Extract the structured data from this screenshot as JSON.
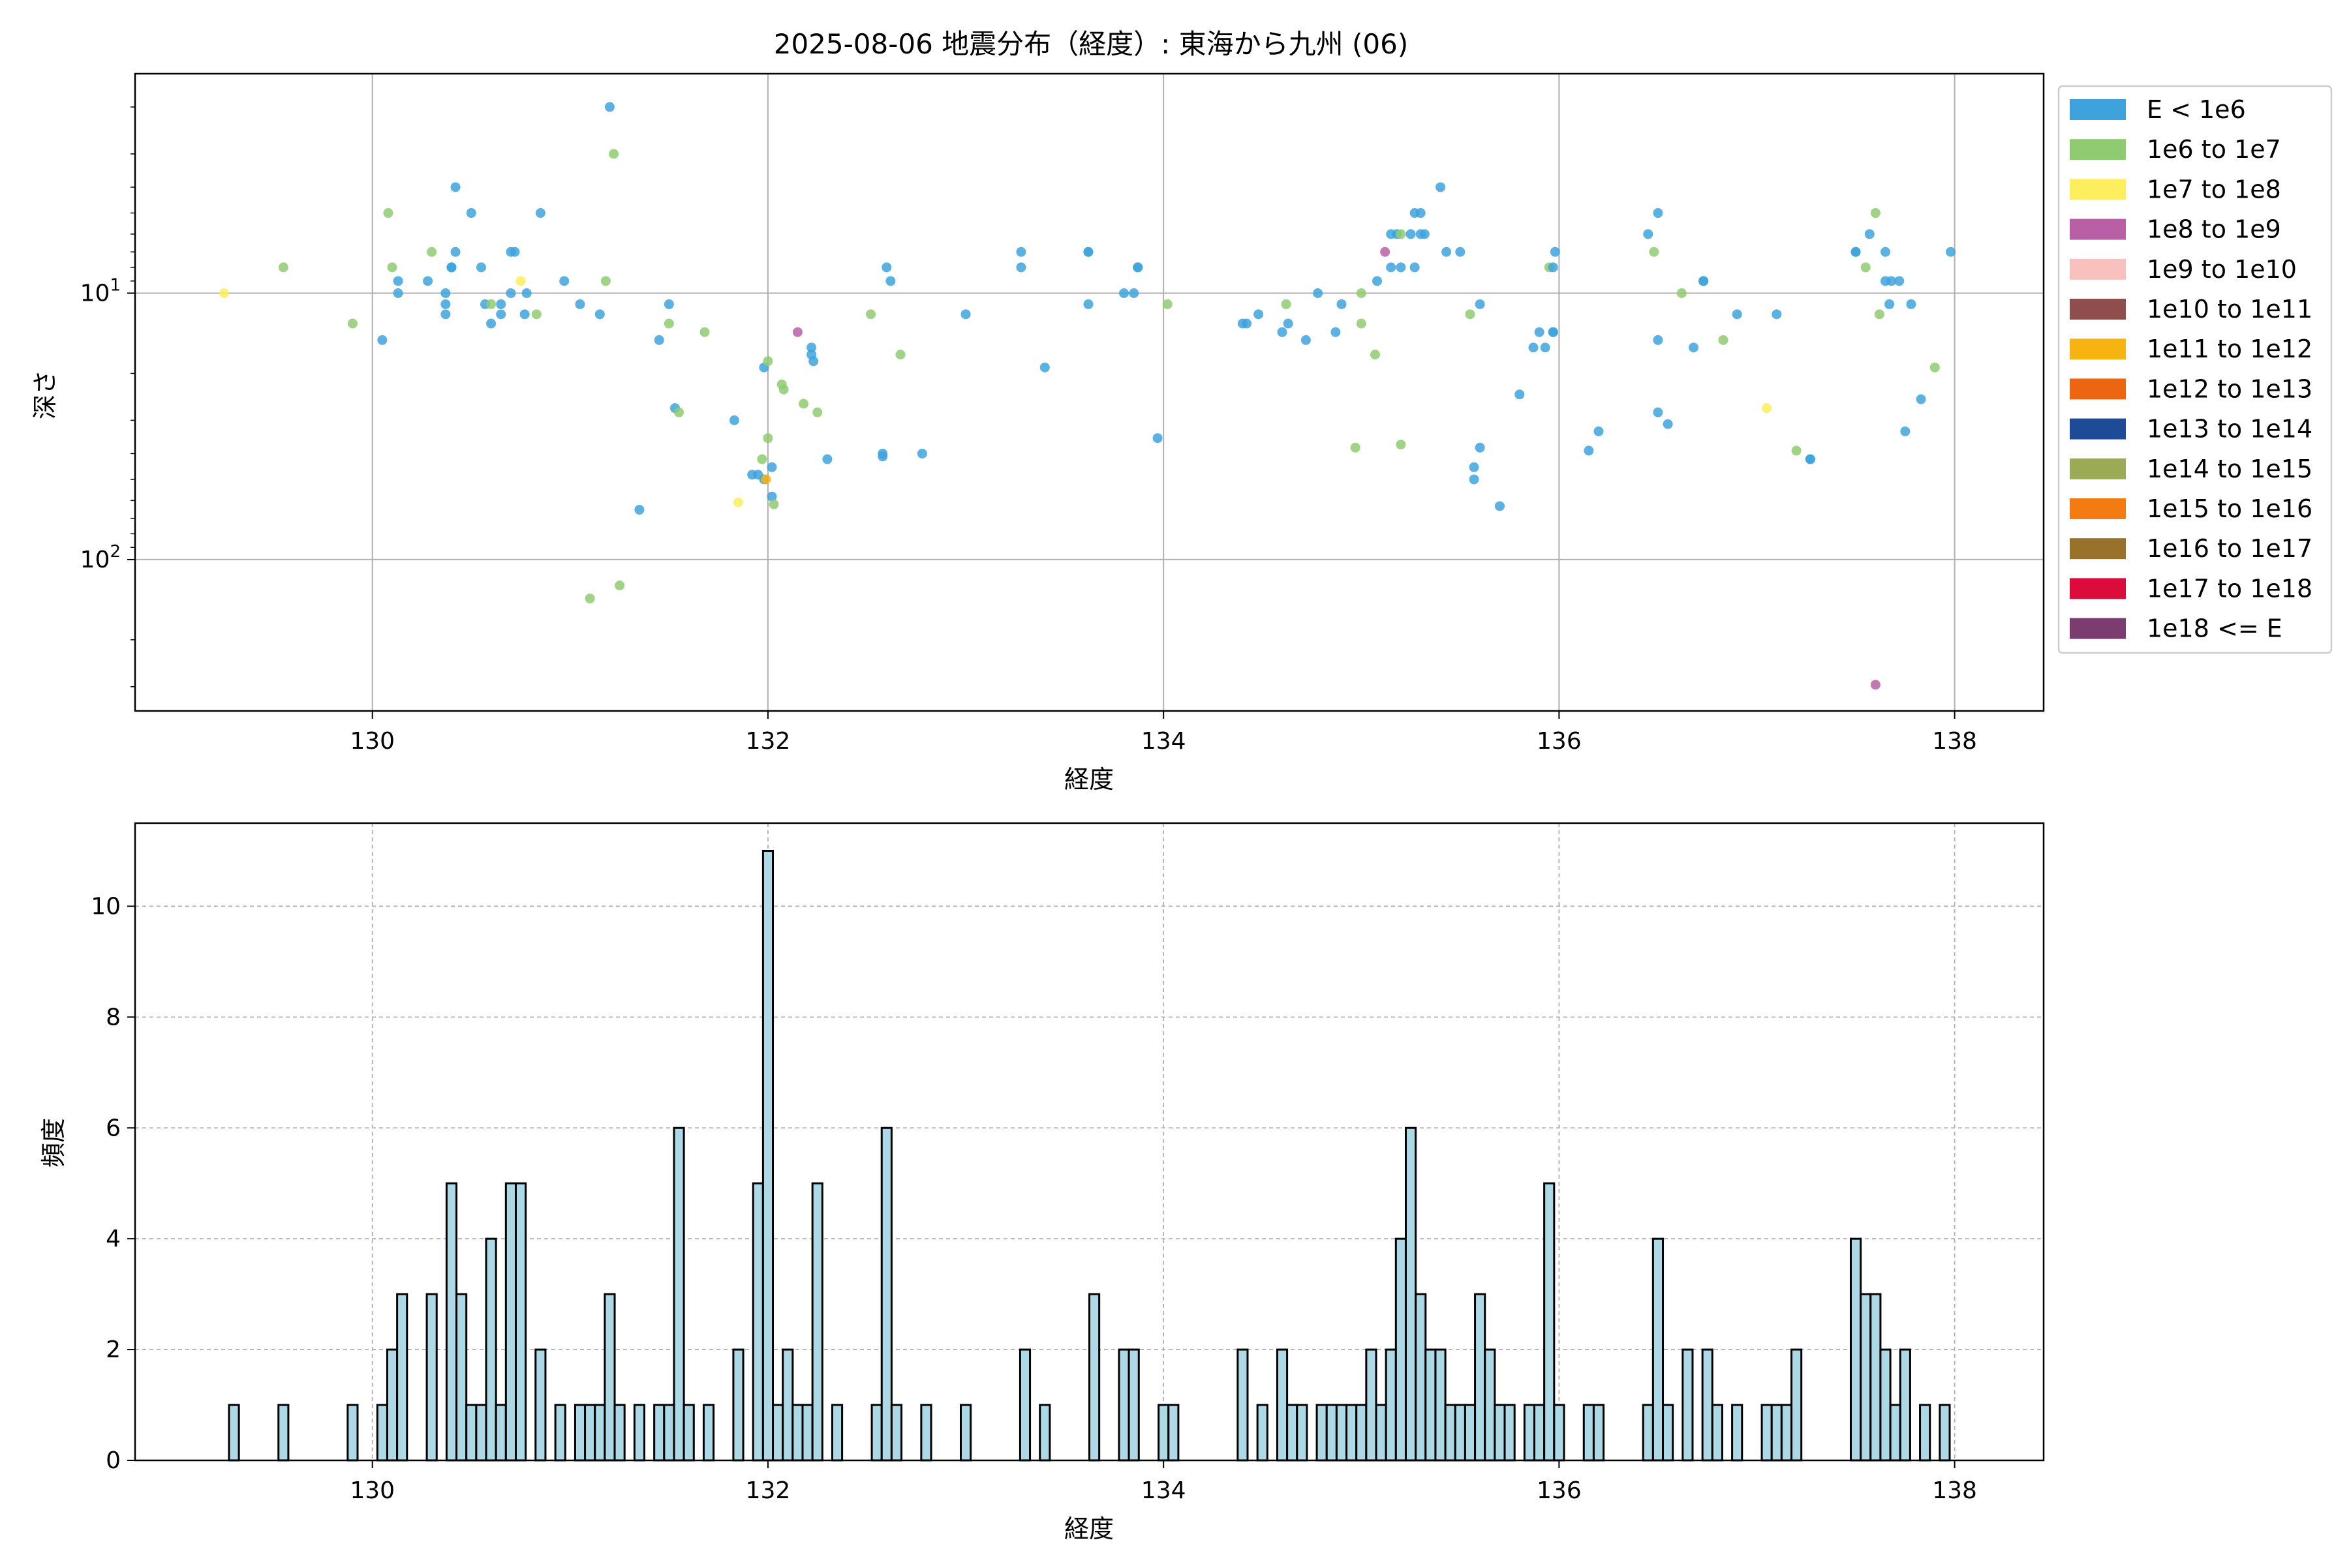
{
  "figure_title": "2025-08-06 地震分布（経度）: 東海から九州 (06)",
  "chart_data": [
    {
      "type": "scatter",
      "xlabel": "経度",
      "ylabel": "深さ",
      "xlim": [
        128.8,
        138.45
      ],
      "ylim": [
        370,
        1.5
      ],
      "yscale": "log",
      "y_inverted": true,
      "grid": true,
      "xticks": [
        130,
        132,
        134,
        136,
        138
      ],
      "yticks": [
        {
          "value": 10,
          "label": "10",
          "sup": "1"
        },
        {
          "value": 100,
          "label": "10",
          "sup": "2"
        }
      ],
      "legend_position": "outside-right",
      "legend": [
        {
          "label": "E < 1e6",
          "color": "#3ea3dd"
        },
        {
          "label": "1e6 to 1e7",
          "color": "#8fcb71"
        },
        {
          "label": "1e7 to 1e8",
          "color": "#fdee5d"
        },
        {
          "label": "1e8 to 1e9",
          "color": "#b95fa6"
        },
        {
          "label": "1e9 to 1e10",
          "color": "#f8c1bd"
        },
        {
          "label": "1e10 to 1e11",
          "color": "#8f4e4c"
        },
        {
          "label": "1e11 to 1e12",
          "color": "#f7b310"
        },
        {
          "label": "1e12 to 1e13",
          "color": "#ec6510"
        },
        {
          "label": "1e13 to 1e14",
          "color": "#1e4b98"
        },
        {
          "label": "1e14 to 1e15",
          "color": "#9bab55"
        },
        {
          "label": "1e15 to 1e16",
          "color": "#f47b12"
        },
        {
          "label": "1e16 to 1e17",
          "color": "#98712b"
        },
        {
          "label": "1e17 to 1e18",
          "color": "#dd0a3c"
        },
        {
          "label": "1e18 <= E",
          "color": "#7b3d70"
        }
      ],
      "points": [
        [
          129.25,
          10,
          2
        ],
        [
          129.55,
          8,
          1
        ],
        [
          129.9,
          13,
          1
        ],
        [
          130.05,
          15,
          0
        ],
        [
          130.08,
          5,
          1
        ],
        [
          130.1,
          8,
          1
        ],
        [
          130.13,
          9,
          0
        ],
        [
          130.13,
          10,
          0
        ],
        [
          130.28,
          9,
          0
        ],
        [
          130.3,
          7,
          1
        ],
        [
          130.37,
          10,
          0
        ],
        [
          130.37,
          11,
          0
        ],
        [
          130.37,
          12,
          0
        ],
        [
          130.4,
          8,
          0
        ],
        [
          130.4,
          8,
          0
        ],
        [
          130.42,
          7,
          0
        ],
        [
          130.42,
          4,
          0
        ],
        [
          130.5,
          5,
          0
        ],
        [
          130.55,
          8,
          0
        ],
        [
          130.57,
          11,
          0
        ],
        [
          130.6,
          13,
          0
        ],
        [
          130.6,
          11,
          1
        ],
        [
          130.65,
          12,
          0
        ],
        [
          130.65,
          11,
          0
        ],
        [
          130.7,
          10,
          0
        ],
        [
          130.7,
          7,
          0
        ],
        [
          130.72,
          7,
          0
        ],
        [
          130.75,
          9,
          2
        ],
        [
          130.77,
          12,
          0
        ],
        [
          130.78,
          10,
          0
        ],
        [
          130.83,
          12,
          1
        ],
        [
          130.85,
          5,
          0
        ],
        [
          130.97,
          9,
          0
        ],
        [
          131.05,
          11,
          0
        ],
        [
          131.1,
          140,
          1
        ],
        [
          131.15,
          12,
          0
        ],
        [
          131.18,
          9,
          1
        ],
        [
          131.2,
          2,
          0
        ],
        [
          131.22,
          3,
          1
        ],
        [
          131.25,
          125,
          1
        ],
        [
          131.35,
          65,
          0
        ],
        [
          131.45,
          15,
          0
        ],
        [
          131.5,
          13,
          1
        ],
        [
          131.5,
          11,
          0
        ],
        [
          131.53,
          27,
          0
        ],
        [
          131.55,
          28,
          1
        ],
        [
          131.68,
          14,
          1
        ],
        [
          131.83,
          30,
          0
        ],
        [
          131.85,
          61,
          2
        ],
        [
          131.92,
          48,
          0
        ],
        [
          131.95,
          48,
          0
        ],
        [
          131.97,
          42,
          1
        ],
        [
          131.98,
          50,
          0
        ],
        [
          131.98,
          19,
          0
        ],
        [
          131.99,
          50,
          6
        ],
        [
          132.0,
          18,
          1
        ],
        [
          132.0,
          35,
          1
        ],
        [
          132.02,
          45,
          0
        ],
        [
          132.02,
          58,
          0
        ],
        [
          132.03,
          62,
          1
        ],
        [
          132.07,
          22,
          1
        ],
        [
          132.08,
          23,
          1
        ],
        [
          132.15,
          14,
          3
        ],
        [
          132.18,
          26,
          1
        ],
        [
          132.22,
          17,
          0
        ],
        [
          132.22,
          16,
          0
        ],
        [
          132.23,
          18,
          0
        ],
        [
          132.25,
          28,
          1
        ],
        [
          132.3,
          42,
          0
        ],
        [
          132.52,
          12,
          1
        ],
        [
          132.58,
          41,
          0
        ],
        [
          132.58,
          40,
          0
        ],
        [
          132.6,
          8,
          0
        ],
        [
          132.62,
          9,
          0
        ],
        [
          132.67,
          17,
          1
        ],
        [
          132.78,
          40,
          0
        ],
        [
          133.0,
          12,
          0
        ],
        [
          133.28,
          7,
          0
        ],
        [
          133.28,
          8,
          0
        ],
        [
          133.4,
          19,
          0
        ],
        [
          133.62,
          7,
          0
        ],
        [
          133.62,
          7,
          0
        ],
        [
          133.62,
          11,
          0
        ],
        [
          133.8,
          10,
          0
        ],
        [
          133.85,
          10,
          0
        ],
        [
          133.87,
          8,
          0
        ],
        [
          133.87,
          8,
          0
        ],
        [
          133.97,
          35,
          0
        ],
        [
          134.02,
          11,
          1
        ],
        [
          134.4,
          13,
          0
        ],
        [
          134.42,
          13,
          0
        ],
        [
          134.48,
          12,
          0
        ],
        [
          134.6,
          14,
          0
        ],
        [
          134.62,
          11,
          1
        ],
        [
          134.63,
          13,
          0
        ],
        [
          134.72,
          15,
          0
        ],
        [
          134.78,
          10,
          0
        ],
        [
          134.87,
          14,
          0
        ],
        [
          134.9,
          11,
          0
        ],
        [
          134.97,
          38,
          1
        ],
        [
          135.0,
          13,
          1
        ],
        [
          135.0,
          10,
          1
        ],
        [
          135.07,
          17,
          1
        ],
        [
          135.08,
          9,
          0
        ],
        [
          135.12,
          7,
          3
        ],
        [
          135.15,
          6,
          0
        ],
        [
          135.15,
          8,
          0
        ],
        [
          135.18,
          6,
          0
        ],
        [
          135.2,
          8,
          0
        ],
        [
          135.2,
          6,
          1
        ],
        [
          135.2,
          37,
          1
        ],
        [
          135.25,
          6,
          0
        ],
        [
          135.27,
          5,
          0
        ],
        [
          135.27,
          8,
          0
        ],
        [
          135.3,
          6,
          0
        ],
        [
          135.3,
          5,
          0
        ],
        [
          135.32,
          6,
          0
        ],
        [
          135.4,
          4,
          0
        ],
        [
          135.43,
          7,
          0
        ],
        [
          135.5,
          7,
          0
        ],
        [
          135.55,
          12,
          1
        ],
        [
          135.57,
          45,
          0
        ],
        [
          135.57,
          50,
          0
        ],
        [
          135.6,
          38,
          0
        ],
        [
          135.6,
          11,
          0
        ],
        [
          135.7,
          63,
          0
        ],
        [
          135.8,
          24,
          0
        ],
        [
          135.87,
          16,
          0
        ],
        [
          135.9,
          14,
          0
        ],
        [
          135.93,
          16,
          0
        ],
        [
          135.95,
          8,
          1
        ],
        [
          135.97,
          14,
          0
        ],
        [
          135.97,
          14,
          0
        ],
        [
          135.97,
          8,
          0
        ],
        [
          135.98,
          7,
          0
        ],
        [
          136.15,
          39,
          0
        ],
        [
          136.2,
          33,
          0
        ],
        [
          136.45,
          6,
          0
        ],
        [
          136.48,
          7,
          1
        ],
        [
          136.5,
          5,
          0
        ],
        [
          136.5,
          15,
          0
        ],
        [
          136.5,
          28,
          0
        ],
        [
          136.55,
          31,
          0
        ],
        [
          136.62,
          10,
          1
        ],
        [
          136.68,
          16,
          0
        ],
        [
          136.73,
          9,
          0
        ],
        [
          136.73,
          9,
          0
        ],
        [
          136.83,
          15,
          1
        ],
        [
          136.9,
          12,
          0
        ],
        [
          137.05,
          27,
          2
        ],
        [
          137.1,
          12,
          0
        ],
        [
          137.2,
          39,
          1
        ],
        [
          137.27,
          42,
          0
        ],
        [
          137.27,
          42,
          0
        ],
        [
          137.5,
          7,
          0
        ],
        [
          137.5,
          7,
          0
        ],
        [
          137.55,
          8,
          1
        ],
        [
          137.57,
          6,
          0
        ],
        [
          137.6,
          5,
          1
        ],
        [
          137.6,
          295,
          3
        ],
        [
          137.62,
          12,
          1
        ],
        [
          137.65,
          9,
          0
        ],
        [
          137.65,
          7,
          0
        ],
        [
          137.67,
          11,
          0
        ],
        [
          137.68,
          9,
          0
        ],
        [
          137.72,
          9,
          0
        ],
        [
          137.75,
          33,
          0
        ],
        [
          137.78,
          11,
          0
        ],
        [
          137.83,
          25,
          0
        ],
        [
          137.9,
          19,
          1
        ],
        [
          137.98,
          7,
          0
        ]
      ]
    },
    {
      "type": "bar",
      "xlabel": "経度",
      "ylabel": "頻度",
      "xlim": [
        128.8,
        138.45
      ],
      "ylim": [
        0,
        11.5
      ],
      "grid": true,
      "grid_style": "dashed",
      "xticks": [
        130,
        132,
        134,
        136,
        138
      ],
      "yticks": [
        0,
        2,
        4,
        6,
        8,
        10
      ],
      "bar_color": "#add8e6",
      "edge_color": "#000000",
      "bin_width": 0.05,
      "bins": [
        [
          129.3,
          1
        ],
        [
          129.55,
          1
        ],
        [
          129.9,
          1
        ],
        [
          130.05,
          1
        ],
        [
          130.1,
          2
        ],
        [
          130.15,
          3
        ],
        [
          130.3,
          3
        ],
        [
          130.4,
          5
        ],
        [
          130.45,
          3
        ],
        [
          130.5,
          1
        ],
        [
          130.55,
          1
        ],
        [
          130.6,
          4
        ],
        [
          130.65,
          1
        ],
        [
          130.7,
          5
        ],
        [
          130.75,
          5
        ],
        [
          130.85,
          2
        ],
        [
          130.95,
          1
        ],
        [
          131.05,
          1
        ],
        [
          131.1,
          1
        ],
        [
          131.15,
          1
        ],
        [
          131.2,
          3
        ],
        [
          131.25,
          1
        ],
        [
          131.35,
          1
        ],
        [
          131.45,
          1
        ],
        [
          131.5,
          1
        ],
        [
          131.55,
          6
        ],
        [
          131.6,
          1
        ],
        [
          131.7,
          1
        ],
        [
          131.85,
          2
        ],
        [
          131.95,
          5
        ],
        [
          132.0,
          11
        ],
        [
          132.05,
          1
        ],
        [
          132.1,
          2
        ],
        [
          132.15,
          1
        ],
        [
          132.2,
          1
        ],
        [
          132.25,
          5
        ],
        [
          132.35,
          1
        ],
        [
          132.55,
          1
        ],
        [
          132.6,
          6
        ],
        [
          132.65,
          1
        ],
        [
          132.8,
          1
        ],
        [
          133.0,
          1
        ],
        [
          133.3,
          2
        ],
        [
          133.4,
          1
        ],
        [
          133.65,
          3
        ],
        [
          133.8,
          2
        ],
        [
          133.85,
          2
        ],
        [
          134.0,
          1
        ],
        [
          134.05,
          1
        ],
        [
          134.4,
          2
        ],
        [
          134.5,
          1
        ],
        [
          134.6,
          2
        ],
        [
          134.65,
          1
        ],
        [
          134.7,
          1
        ],
        [
          134.8,
          1
        ],
        [
          134.85,
          1
        ],
        [
          134.9,
          1
        ],
        [
          134.95,
          1
        ],
        [
          135.0,
          1
        ],
        [
          135.05,
          2
        ],
        [
          135.1,
          1
        ],
        [
          135.15,
          2
        ],
        [
          135.2,
          4
        ],
        [
          135.25,
          6
        ],
        [
          135.3,
          3
        ],
        [
          135.35,
          2
        ],
        [
          135.4,
          2
        ],
        [
          135.45,
          1
        ],
        [
          135.5,
          1
        ],
        [
          135.55,
          1
        ],
        [
          135.6,
          3
        ],
        [
          135.65,
          2
        ],
        [
          135.7,
          1
        ],
        [
          135.75,
          1
        ],
        [
          135.85,
          1
        ],
        [
          135.9,
          1
        ],
        [
          135.95,
          5
        ],
        [
          136.0,
          1
        ],
        [
          136.15,
          1
        ],
        [
          136.2,
          1
        ],
        [
          136.45,
          1
        ],
        [
          136.5,
          4
        ],
        [
          136.55,
          1
        ],
        [
          136.65,
          2
        ],
        [
          136.75,
          2
        ],
        [
          136.8,
          1
        ],
        [
          136.9,
          1
        ],
        [
          137.05,
          1
        ],
        [
          137.1,
          1
        ],
        [
          137.15,
          1
        ],
        [
          137.2,
          2
        ],
        [
          137.5,
          4
        ],
        [
          137.55,
          3
        ],
        [
          137.6,
          3
        ],
        [
          137.65,
          2
        ],
        [
          137.7,
          1
        ],
        [
          137.75,
          2
        ],
        [
          137.85,
          1
        ],
        [
          137.95,
          1
        ]
      ]
    }
  ]
}
